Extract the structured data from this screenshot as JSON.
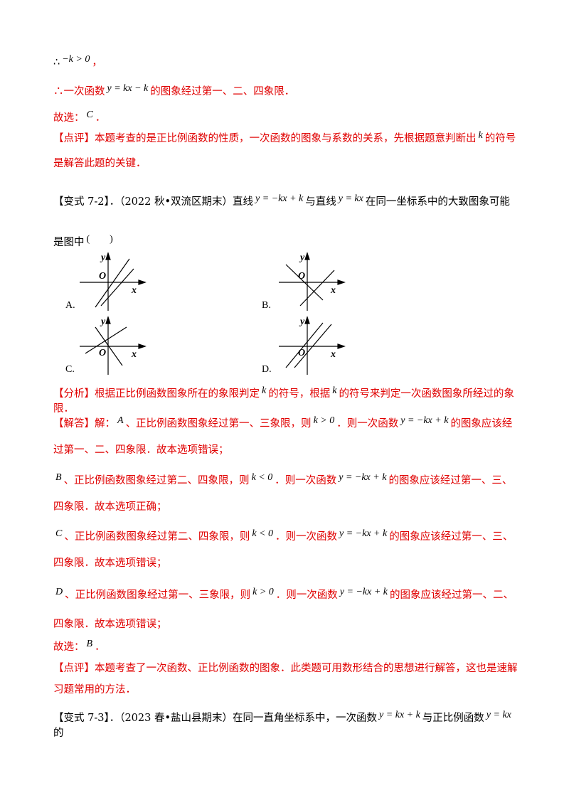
{
  "paragraphs": [
    [
      "∴",
      "−k > 0",
      "，"
    ],
    [
      "∴一次函数",
      "y = kx − k",
      "的图象经过第一、二、四象限．"
    ],
    [
      "故选：",
      "C",
      "．"
    ],
    [
      "【点评】本题考查的是正比例函数的性质，一次函数的图象与系数的关系，先根据题意判断出",
      "k",
      "的符号是解答此题的关键．"
    ],
    [
      "【变式 7-2】．（2022 秋•双流区期末）直线",
      "y = −kx + k",
      "与直线",
      "y = kx",
      "在同一坐标系中的大致图象可能是图中",
      "(　　)"
    ],
    [
      "【分析】根据正比例函数图象所在的象限判定",
      "k",
      "的符号，根据",
      "k",
      "的符号来判定一次函数图象所经过的象限．"
    ],
    [
      "【解答】解：",
      "A",
      "、正比例函数图象经过第一、三象限，则",
      "k > 0",
      "．则一次函数",
      "y = −kx + k",
      "的图象应该经过第一、二、四象限．故本选项错误；"
    ],
    [
      "B",
      "、正比例函数图象经过第二、四象限，则",
      "k < 0",
      "．则一次函数",
      "y = −kx + k",
      "的图象应该经过第一、三、四象限．故本选项正确；"
    ],
    [
      "C",
      "、正比例函数图象经过第二、四象限，则",
      "k < 0",
      "．则一次函数",
      "y = −kx + k",
      "的图象应该经过第一、三、四象限．故本选项错误；"
    ],
    [
      "D",
      "、正比例函数图象经过第一、三象限，则",
      "k > 0",
      "．则一次函数",
      "y = −kx + k",
      "的图象应该经过第一、二、四象限．故本选项错误；"
    ],
    [
      "故选：",
      "B",
      "．"
    ],
    [
      "【点评】本题考查了一次函数、正比例函数的图象．此类题可用数形结合的思想进行解答，这也是速解习题常用的方法．"
    ],
    [
      "【变式 7-3】．（2023 春•盐山县期末）在同一直角坐标系中，一次函数",
      "y = kx + k",
      "与正比例函数",
      "y = kx",
      "的"
    ]
  ],
  "options": [
    {
      "label": "A.",
      "y": "y",
      "origin": "O",
      "x": "x"
    },
    {
      "label": "B.",
      "y": "y",
      "origin": "O",
      "x": "x"
    },
    {
      "label": "C.",
      "y": "y",
      "origin": "O",
      "x": "x"
    },
    {
      "label": "D.",
      "y": "y",
      "origin": "O",
      "x": "x"
    }
  ]
}
